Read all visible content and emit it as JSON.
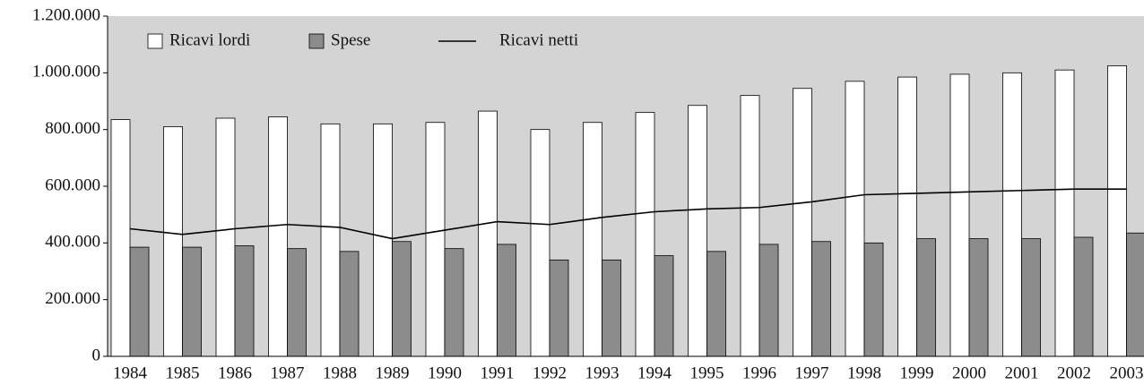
{
  "chart_data": {
    "type": "bar",
    "categories": [
      "1984",
      "1985",
      "1986",
      "1987",
      "1988",
      "1989",
      "1990",
      "1991",
      "1992",
      "1993",
      "1994",
      "1995",
      "1996",
      "1997",
      "1998",
      "1999",
      "2000",
      "2001",
      "2002",
      "2003"
    ],
    "series": [
      {
        "name": "Ricavi lordi",
        "type": "bar",
        "color": "#ffffff",
        "values": [
          835000,
          810000,
          840000,
          845000,
          820000,
          820000,
          825000,
          865000,
          800000,
          825000,
          860000,
          885000,
          920000,
          945000,
          970000,
          985000,
          995000,
          1000000,
          1010000,
          1025000
        ]
      },
      {
        "name": "Spese",
        "type": "bar",
        "color": "#8c8c8c",
        "values": [
          385000,
          385000,
          390000,
          380000,
          370000,
          405000,
          380000,
          395000,
          340000,
          340000,
          355000,
          370000,
          395000,
          405000,
          400000,
          415000,
          415000,
          415000,
          420000,
          435000
        ]
      },
      {
        "name": "Ricavi netti",
        "type": "line",
        "color": "#000000",
        "values": [
          450000,
          430000,
          450000,
          465000,
          455000,
          415000,
          445000,
          475000,
          465000,
          490000,
          510000,
          520000,
          525000,
          545000,
          570000,
          575000,
          580000,
          585000,
          590000,
          590000
        ]
      }
    ],
    "ylim": [
      0,
      1200000
    ],
    "yticks": [
      0,
      {
        "value": 200000,
        "label": "200.000"
      },
      {
        "value": 400000,
        "label": "400.000"
      },
      {
        "value": 600000,
        "label": "600.000"
      },
      {
        "value": 800000,
        "label": "800.000"
      },
      {
        "value": 1000000,
        "label": "1.000.000"
      },
      {
        "value": 1200000,
        "label": "1.200.000"
      }
    ],
    "legend": "top-left",
    "grid": false
  }
}
